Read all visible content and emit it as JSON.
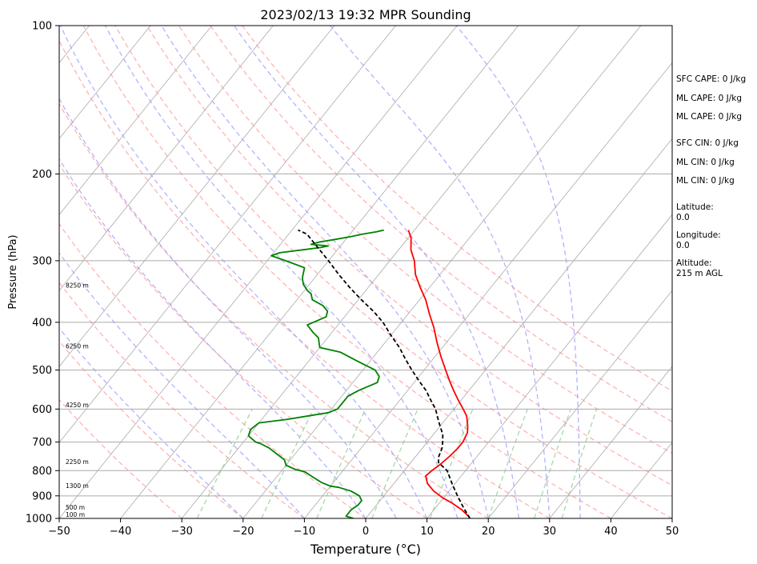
{
  "chart_data": {
    "type": "line",
    "title": "2023/02/13 19:32 MPR Sounding",
    "xlabel": "Temperature (°C)",
    "ylabel": "Pressure (hPa)",
    "xlim": [
      -50,
      50
    ],
    "ylim": [
      1000,
      100
    ],
    "y_scale": "log",
    "skew": "skew-T log-p",
    "grid": true,
    "x_ticks": [
      -50,
      -40,
      -30,
      -20,
      -10,
      0,
      10,
      20,
      30,
      40,
      50
    ],
    "x_tick_labels": [
      "−50",
      "−40",
      "−30",
      "−20",
      "−10",
      "0",
      "10",
      "20",
      "30",
      "40",
      "50"
    ],
    "y_ticks": [
      100,
      200,
      300,
      400,
      500,
      600,
      700,
      800,
      900,
      1000
    ],
    "y_tick_labels": [
      "100",
      "200",
      "300",
      "400",
      "500",
      "600",
      "700",
      "800",
      "900",
      "1000"
    ],
    "series": [
      {
        "color": "#ff0000",
        "style": "solid",
        "points": [
          [
            17,
            1000
          ],
          [
            16.5,
            990
          ],
          [
            14.5,
            960
          ],
          [
            12,
            930
          ],
          [
            10,
            910
          ],
          [
            7.5,
            880
          ],
          [
            5.5,
            850
          ],
          [
            4.2,
            820
          ],
          [
            4.5,
            800
          ],
          [
            5.0,
            780
          ],
          [
            5.5,
            750
          ],
          [
            5.8,
            720
          ],
          [
            5.8,
            700
          ],
          [
            5.3,
            670
          ],
          [
            4.5,
            650
          ],
          [
            3.0,
            620
          ],
          [
            1.5,
            600
          ],
          [
            -0.5,
            575
          ],
          [
            -2.5,
            550
          ],
          [
            -4.5,
            525
          ],
          [
            -6.5,
            500
          ],
          [
            -9,
            470
          ],
          [
            -11.5,
            440
          ],
          [
            -14,
            410
          ],
          [
            -16.5,
            385
          ],
          [
            -19,
            360
          ],
          [
            -21.5,
            340
          ],
          [
            -24,
            320
          ],
          [
            -26,
            300
          ],
          [
            -28,
            285
          ],
          [
            -29.5,
            270
          ],
          [
            -31,
            260
          ]
        ]
      },
      {
        "color": "#008000",
        "style": "solid",
        "points": [
          [
            -2,
            1000
          ],
          [
            -3.5,
            990
          ],
          [
            -3.5,
            980
          ],
          [
            -3.5,
            960
          ],
          [
            -3,
            940
          ],
          [
            -3,
            920
          ],
          [
            -4,
            900
          ],
          [
            -6,
            880
          ],
          [
            -8.5,
            865
          ],
          [
            -10,
            860
          ],
          [
            -12,
            845
          ],
          [
            -14,
            825
          ],
          [
            -16,
            805
          ],
          [
            -18,
            795
          ],
          [
            -20,
            780
          ],
          [
            -21,
            760
          ],
          [
            -23,
            740
          ],
          [
            -25,
            720
          ],
          [
            -27,
            705
          ],
          [
            -28,
            700
          ],
          [
            -30,
            680
          ],
          [
            -30.5,
            660
          ],
          [
            -30,
            640
          ],
          [
            -26,
            630
          ],
          [
            -20,
            610
          ],
          [
            -19,
            600
          ],
          [
            -19,
            580
          ],
          [
            -19,
            565
          ],
          [
            -18,
            550
          ],
          [
            -16,
            530
          ],
          [
            -16.5,
            515
          ],
          [
            -18,
            500
          ],
          [
            -22,
            480
          ],
          [
            -26,
            460
          ],
          [
            -30,
            450
          ],
          [
            -31.5,
            430
          ],
          [
            -33,
            420
          ],
          [
            -35,
            405
          ],
          [
            -33,
            390
          ],
          [
            -33.5,
            380
          ],
          [
            -35,
            370
          ],
          [
            -37.5,
            360
          ],
          [
            -38,
            355
          ],
          [
            -38.5,
            350
          ],
          [
            -39.5,
            345
          ],
          [
            -41,
            335
          ],
          [
            -42,
            325
          ],
          [
            -43,
            310
          ],
          [
            -47,
            300
          ],
          [
            -50,
            293
          ],
          [
            -49,
            289
          ],
          [
            -43,
            282
          ],
          [
            -42,
            280
          ],
          [
            -45,
            278
          ],
          [
            -44,
            275
          ],
          [
            -42,
            272
          ],
          [
            -39.5,
            268
          ],
          [
            -38,
            265
          ],
          [
            -36,
            262
          ],
          [
            -35,
            260
          ]
        ]
      },
      {
        "color": "#000000",
        "style": "dashed",
        "points": [
          [
            17,
            1000
          ],
          [
            14.5,
            950
          ],
          [
            12,
            900
          ],
          [
            9.5,
            850
          ],
          [
            7,
            800
          ],
          [
            4.5,
            770
          ],
          [
            3.8,
            750
          ],
          [
            3.2,
            720
          ],
          [
            2.5,
            700
          ],
          [
            1.5,
            675
          ],
          [
            0,
            650
          ],
          [
            -1.5,
            625
          ],
          [
            -3,
            600
          ],
          [
            -5,
            575
          ],
          [
            -7,
            550
          ],
          [
            -9.5,
            525
          ],
          [
            -12,
            500
          ],
          [
            -14.5,
            475
          ],
          [
            -17,
            450
          ],
          [
            -20,
            425
          ],
          [
            -23,
            400
          ],
          [
            -26,
            380
          ],
          [
            -29.5,
            360
          ],
          [
            -33,
            340
          ],
          [
            -36.5,
            320
          ],
          [
            -40,
            300
          ],
          [
            -43.5,
            282
          ],
          [
            -47,
            265
          ],
          [
            -49,
            260
          ]
        ]
      }
    ],
    "height_labels": [
      {
        "text": "100 m",
        "p": 1000
      },
      {
        "text": "500 m",
        "p": 960
      },
      {
        "text": "1300 m",
        "p": 868
      },
      {
        "text": "2250 m",
        "p": 775
      },
      {
        "text": "4250 m",
        "p": 595
      },
      {
        "text": "6250 m",
        "p": 452
      },
      {
        "text": "8250 m",
        "p": 340
      }
    ],
    "reference_lines": {
      "isotherms": {
        "color": "#aaaaaa",
        "t_values": [
          -120,
          -110,
          -100,
          -90,
          -80,
          -70,
          -60,
          -50,
          -40,
          -30,
          -20,
          -10,
          0,
          10,
          20,
          30,
          40,
          50
        ]
      },
      "dry_adiabats": {
        "color": "#ff9999",
        "style": "dashed",
        "theta_c": [
          -30,
          -20,
          -10,
          0,
          10,
          20,
          30,
          40,
          50,
          60,
          70,
          80,
          90
        ]
      },
      "moist_adiabats": {
        "color": "#9999ff",
        "style": "dashed",
        "t0_c": [
          -20,
          -10,
          0,
          5,
          10,
          15,
          20,
          25,
          30,
          35
        ]
      },
      "mixing_ratio": {
        "color": "#88cc88",
        "style": "dashed",
        "t_at_1000": [
          -27.5,
          -17,
          -8,
          1,
          10.5,
          20,
          27.5,
          32
        ]
      }
    }
  },
  "side_panel": {
    "sfc_cape": "SFC CAPE: 0 J/kg",
    "ml_cape_1": "ML CAPE: 0 J/kg",
    "ml_cape_2": "ML CAPE: 0 J/kg",
    "sfc_cin": "SFC CIN: 0 J/kg",
    "ml_cin_1": "ML CIN: 0 J/kg",
    "ml_cin_2": "ML CIN: 0 J/kg",
    "latitude": "Latitude:\n0.0",
    "longitude": "Longitude:\n0.0",
    "altitude": "Altitude:\n215 m AGL"
  }
}
